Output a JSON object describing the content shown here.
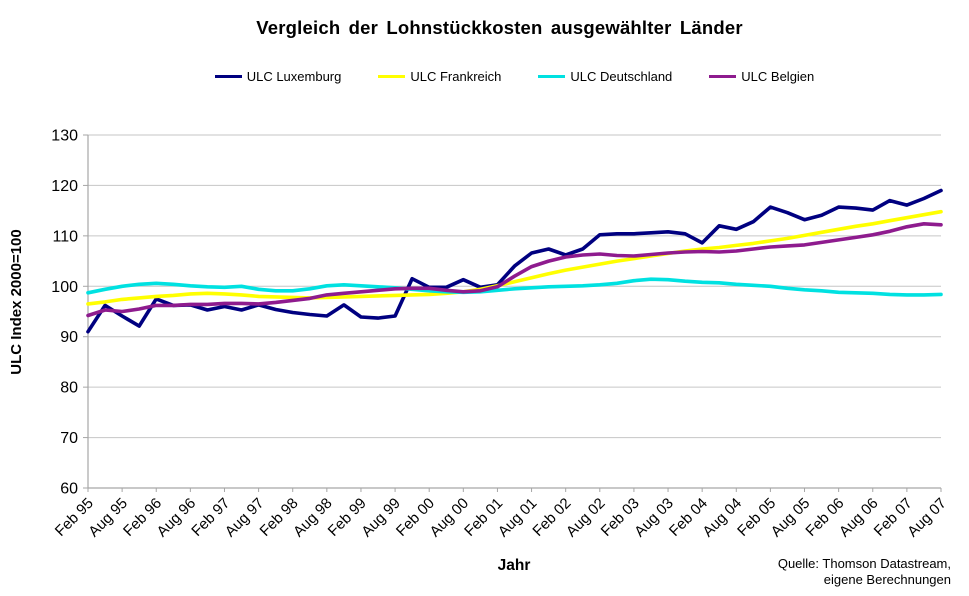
{
  "title": "Vergleich der Lohnstückkosten ausgewählter Länder",
  "source": {
    "line1": "Quelle: Thomson Datastream,",
    "line2": "eigene Berechnungen"
  },
  "chart_data": {
    "type": "line",
    "title": "Vergleich der Lohnstückkosten ausgewählter Länder",
    "xlabel": "Jahr",
    "ylabel": "ULC Index 2000=100",
    "ylim": [
      60,
      130
    ],
    "ytick_step": 10,
    "grid": true,
    "legend_position": "top",
    "x_frequency": "quarterly (labels shown semi-annually)",
    "x_tick_labels": [
      "Feb 95",
      "Aug 95",
      "Feb 96",
      "Aug 96",
      "Feb 97",
      "Aug 97",
      "Feb 98",
      "Aug 98",
      "Feb 99",
      "Aug 99",
      "Feb 00",
      "Aug 00",
      "Feb 01",
      "Aug 01",
      "Feb 02",
      "Aug 02",
      "Feb 03",
      "Aug 03",
      "Feb 04",
      "Aug 04",
      "Feb 05",
      "Aug 05",
      "Feb 06",
      "Aug 06",
      "Feb 07",
      "Aug 07"
    ],
    "series": [
      {
        "name": "ULC Luxemburg",
        "color": "#000080",
        "values": [
          91.0,
          96.2,
          94.1,
          92.1,
          97.5,
          96.2,
          96.3,
          95.3,
          96.0,
          95.3,
          96.3,
          95.4,
          94.8,
          94.4,
          94.1,
          96.3,
          93.9,
          93.7,
          94.1,
          101.5,
          99.8,
          99.8,
          101.3,
          99.8,
          100.3,
          104.0,
          106.6,
          107.4,
          106.2,
          107.4,
          110.2,
          110.4,
          110.4,
          110.6,
          110.8,
          110.4,
          108.6,
          112.0,
          111.3,
          112.8,
          115.7,
          114.6,
          113.2,
          114.1,
          115.7,
          115.5,
          115.1,
          117.0,
          116.1,
          117.4,
          119.0
        ]
      },
      {
        "name": "ULC Frankreich",
        "color": "#FFFF00",
        "values": [
          96.5,
          96.9,
          97.4,
          97.7,
          98.0,
          98.2,
          98.5,
          98.6,
          98.5,
          98.3,
          98.0,
          97.9,
          97.8,
          97.7,
          97.8,
          97.9,
          98.0,
          98.1,
          98.2,
          98.3,
          98.4,
          98.6,
          98.9,
          99.4,
          100.1,
          100.9,
          101.7,
          102.5,
          103.2,
          103.8,
          104.4,
          105.0,
          105.5,
          106.0,
          106.5,
          107.0,
          107.4,
          107.7,
          108.1,
          108.5,
          109.0,
          109.5,
          110.1,
          110.7,
          111.3,
          111.9,
          112.4,
          113.0,
          113.6,
          114.2,
          114.8
        ]
      },
      {
        "name": "ULC Deutschland",
        "color": "#00E1E1",
        "values": [
          98.7,
          99.4,
          100.0,
          100.4,
          100.6,
          100.4,
          100.1,
          99.9,
          99.8,
          100.0,
          99.4,
          99.1,
          99.1,
          99.5,
          100.1,
          100.3,
          100.1,
          99.9,
          99.7,
          99.4,
          99.1,
          98.9,
          98.8,
          98.9,
          99.2,
          99.5,
          99.7,
          99.9,
          100.0,
          100.1,
          100.3,
          100.6,
          101.1,
          101.4,
          101.3,
          101.0,
          100.8,
          100.7,
          100.4,
          100.2,
          100.0,
          99.6,
          99.3,
          99.1,
          98.8,
          98.7,
          98.6,
          98.4,
          98.3,
          98.3,
          98.4
        ]
      },
      {
        "name": "ULC Belgien",
        "color": "#8E1B8E",
        "values": [
          94.2,
          95.3,
          95.0,
          95.5,
          96.2,
          96.2,
          96.4,
          96.4,
          96.6,
          96.6,
          96.5,
          96.8,
          97.2,
          97.6,
          98.3,
          98.6,
          98.9,
          99.2,
          99.5,
          99.6,
          99.6,
          99.2,
          98.9,
          99.1,
          99.9,
          102.0,
          103.9,
          105.0,
          105.8,
          106.2,
          106.4,
          106.1,
          106.0,
          106.3,
          106.6,
          106.8,
          106.9,
          106.8,
          107.0,
          107.4,
          107.8,
          108.0,
          108.2,
          108.7,
          109.2,
          109.7,
          110.2,
          110.9,
          111.8,
          112.4,
          112.2
        ]
      }
    ],
    "axis_color": "#a6a6a6",
    "gridline_color": "#c6c6c6"
  }
}
